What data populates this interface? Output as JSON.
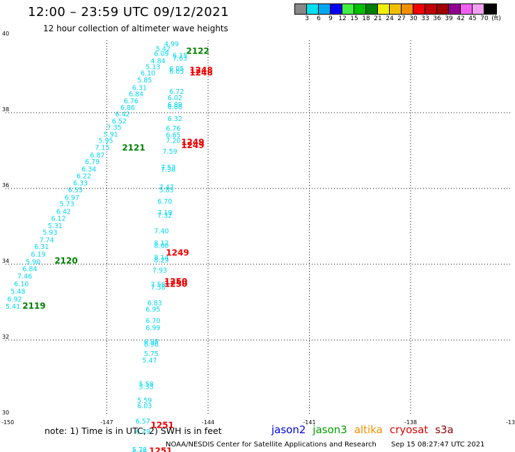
{
  "header": {
    "title": "12:00 – 23:59 UTC 09/12/2021",
    "subtitle": "12 hour collection of altimeter wave heights"
  },
  "colorbar": {
    "colors": [
      "#888888",
      "#00e0f0",
      "#00a8f0",
      "#0000f0",
      "#40f040",
      "#00c000",
      "#008000",
      "#f0f000",
      "#f0c000",
      "#f09000",
      "#f00000",
      "#c00000",
      "#a00000",
      "#900090",
      "#f060f0",
      "#f0a0f0",
      "#000000"
    ],
    "labels": [
      "3",
      "6",
      "9",
      "12",
      "15",
      "18",
      "21",
      "24",
      "27",
      "30",
      "33",
      "36",
      "39",
      "42",
      "45",
      "70",
      "(ft)"
    ]
  },
  "axes": {
    "y_labels": [
      "40",
      "38",
      "36",
      "34",
      "32",
      "30"
    ],
    "x_labels": [
      "-150",
      "-147",
      "-144",
      "-141",
      "-138",
      "-13"
    ]
  },
  "map_data": {
    "lon_range": [
      -150,
      -135
    ],
    "lat_range": [
      30,
      40
    ],
    "wave_color": "#00d8f0",
    "track_a": [
      {
        "lon": -145.3,
        "lat": 39.75,
        "v": "4.99"
      },
      {
        "lon": -145.55,
        "lat": 39.62,
        "v": "5.42"
      },
      {
        "lon": -145.6,
        "lat": 39.5,
        "v": "6.09"
      },
      {
        "lon": -145.7,
        "lat": 39.3,
        "v": "4.84"
      },
      {
        "lon": -145.85,
        "lat": 39.15,
        "v": "5.13"
      },
      {
        "lon": -146.0,
        "lat": 38.98,
        "v": "6.10"
      },
      {
        "lon": -146.1,
        "lat": 38.8,
        "v": "5.85"
      },
      {
        "lon": -146.25,
        "lat": 38.6,
        "v": "6.31"
      },
      {
        "lon": -146.35,
        "lat": 38.43,
        "v": "6.84"
      },
      {
        "lon": -146.5,
        "lat": 38.25,
        "v": "6.76"
      },
      {
        "lon": -146.6,
        "lat": 38.07,
        "v": "6.86"
      },
      {
        "lon": -146.75,
        "lat": 37.9,
        "v": "6.42"
      },
      {
        "lon": -146.85,
        "lat": 37.72,
        "v": "6.52"
      },
      {
        "lon": -147.0,
        "lat": 37.55,
        "v": "7.35"
      },
      {
        "lon": -147.1,
        "lat": 37.37,
        "v": "5.91"
      },
      {
        "lon": -147.25,
        "lat": 37.2,
        "v": "5.95"
      },
      {
        "lon": -147.35,
        "lat": 37.02,
        "v": "7.15"
      },
      {
        "lon": -147.5,
        "lat": 36.82,
        "v": "6.87"
      },
      {
        "lon": -147.65,
        "lat": 36.64,
        "v": "6.79"
      },
      {
        "lon": -147.75,
        "lat": 36.45,
        "v": "6.34"
      },
      {
        "lon": -147.9,
        "lat": 36.27,
        "v": "6.22"
      },
      {
        "lon": -148.0,
        "lat": 36.08,
        "v": "6.33"
      },
      {
        "lon": -148.15,
        "lat": 35.9,
        "v": "6.55"
      },
      {
        "lon": -148.25,
        "lat": 35.7,
        "v": "6.97"
      },
      {
        "lon": -148.4,
        "lat": 35.53,
        "v": "5.73"
      },
      {
        "lon": -148.5,
        "lat": 35.33,
        "v": "6.42"
      },
      {
        "lon": -148.65,
        "lat": 35.15,
        "v": "6.12"
      },
      {
        "lon": -148.75,
        "lat": 34.95,
        "v": "5.31"
      },
      {
        "lon": -148.9,
        "lat": 34.78,
        "v": "5.93"
      },
      {
        "lon": -149.0,
        "lat": 34.58,
        "v": "7.74"
      },
      {
        "lon": -149.15,
        "lat": 34.4,
        "v": "6.31"
      },
      {
        "lon": -149.25,
        "lat": 34.2,
        "v": "6.19"
      },
      {
        "lon": -149.4,
        "lat": 34.0,
        "v": "5.90"
      },
      {
        "lon": -149.5,
        "lat": 33.82,
        "v": "6.84"
      },
      {
        "lon": -149.65,
        "lat": 33.62,
        "v": "7.46"
      },
      {
        "lon": -149.75,
        "lat": 33.42,
        "v": "6.10"
      },
      {
        "lon": -149.85,
        "lat": 33.22,
        "v": "5.48"
      },
      {
        "lon": -149.95,
        "lat": 33.02,
        "v": "6.92"
      },
      {
        "lon": -150.0,
        "lat": 32.83,
        "v": "5.41"
      }
    ],
    "track_b": [
      {
        "lon": -145.05,
        "lat": 39.45,
        "v": "6.15"
      },
      {
        "lon": -145.05,
        "lat": 39.38,
        "v": "7.63"
      },
      {
        "lon": -145.15,
        "lat": 39.1,
        "v": "6.05"
      },
      {
        "lon": -145.15,
        "lat": 39.03,
        "v": "6.05"
      },
      {
        "lon": -145.15,
        "lat": 38.5,
        "v": "6.72"
      },
      {
        "lon": -145.2,
        "lat": 38.33,
        "v": "6.02"
      },
      {
        "lon": -145.2,
        "lat": 38.15,
        "v": "6.89"
      },
      {
        "lon": -145.2,
        "lat": 38.09,
        "v": "6.88"
      },
      {
        "lon": -145.2,
        "lat": 37.78,
        "v": "6.32"
      },
      {
        "lon": -145.25,
        "lat": 37.52,
        "v": "6.76"
      },
      {
        "lon": -145.25,
        "lat": 37.35,
        "v": "6.65"
      },
      {
        "lon": -145.25,
        "lat": 37.2,
        "v": "7.20"
      },
      {
        "lon": -145.35,
        "lat": 36.92,
        "v": "7.59"
      },
      {
        "lon": -145.4,
        "lat": 36.5,
        "v": "7.53"
      },
      {
        "lon": -145.4,
        "lat": 36.44,
        "v": "7.38"
      },
      {
        "lon": -145.45,
        "lat": 35.97,
        "v": "7.47"
      },
      {
        "lon": -145.45,
        "lat": 35.9,
        "v": "5.83"
      },
      {
        "lon": -145.5,
        "lat": 35.6,
        "v": "6.70"
      },
      {
        "lon": -145.5,
        "lat": 35.3,
        "v": "7.19"
      },
      {
        "lon": -145.5,
        "lat": 35.23,
        "v": "7.32"
      },
      {
        "lon": -145.6,
        "lat": 34.82,
        "v": "7.40"
      },
      {
        "lon": -145.6,
        "lat": 34.5,
        "v": "8.12"
      },
      {
        "lon": -145.6,
        "lat": 34.43,
        "v": "8.00"
      },
      {
        "lon": -145.6,
        "lat": 34.12,
        "v": "8.14"
      },
      {
        "lon": -145.6,
        "lat": 34.05,
        "v": "8.29"
      },
      {
        "lon": -145.65,
        "lat": 33.78,
        "v": "7.93"
      },
      {
        "lon": -145.7,
        "lat": 33.4,
        "v": "7.58"
      },
      {
        "lon": -145.7,
        "lat": 33.33,
        "v": "7.58"
      },
      {
        "lon": -145.8,
        "lat": 32.92,
        "v": "6.83"
      },
      {
        "lon": -145.85,
        "lat": 32.75,
        "v": "6.95"
      },
      {
        "lon": -145.85,
        "lat": 32.45,
        "v": "6.70"
      },
      {
        "lon": -145.85,
        "lat": 32.27,
        "v": "6.99"
      },
      {
        "lon": -145.9,
        "lat": 31.9,
        "v": "6.98"
      },
      {
        "lon": -145.9,
        "lat": 31.83,
        "v": "6.96"
      },
      {
        "lon": -145.9,
        "lat": 31.58,
        "v": "5.75"
      },
      {
        "lon": -145.95,
        "lat": 31.4,
        "v": "5.47"
      },
      {
        "lon": -146.05,
        "lat": 30.78,
        "v": "5.58"
      },
      {
        "lon": -146.05,
        "lat": 30.71,
        "v": "5.33"
      },
      {
        "lon": -146.1,
        "lat": 30.35,
        "v": "5.59"
      },
      {
        "lon": -146.1,
        "lat": 30.2,
        "v": "6.03"
      },
      {
        "lon": -146.15,
        "lat": 29.8,
        "v": "6.57"
      },
      {
        "lon": -146.15,
        "lat": 29.52,
        "v": "6.19"
      },
      {
        "lon": -146.25,
        "lat": 29.05,
        "v": "5.78"
      },
      {
        "lon": -146.25,
        "lat": 28.98,
        "v": "6.45"
      }
    ],
    "time_labels": [
      {
        "lon": -144.65,
        "lat": 39.55,
        "v": "2122",
        "color": "#008000"
      },
      {
        "lon": -144.55,
        "lat": 39.05,
        "v": "1248",
        "color": "#f00000"
      },
      {
        "lon": -144.55,
        "lat": 38.98,
        "v": "1248",
        "color": "#f00000"
      },
      {
        "lon": -146.55,
        "lat": 37.0,
        "v": "2121",
        "color": "#008000"
      },
      {
        "lon": -144.8,
        "lat": 37.15,
        "v": "1249",
        "color": "#f00000"
      },
      {
        "lon": -144.8,
        "lat": 37.06,
        "v": "1249",
        "color": "#f00000"
      },
      {
        "lon": -145.25,
        "lat": 34.23,
        "v": "1249",
        "color": "#f00000"
      },
      {
        "lon": -145.3,
        "lat": 33.47,
        "v": "1250",
        "color": "#f00000"
      },
      {
        "lon": -145.3,
        "lat": 33.4,
        "v": "1250",
        "color": "#f00000"
      },
      {
        "lon": -148.55,
        "lat": 34.02,
        "v": "2120",
        "color": "#008000"
      },
      {
        "lon": -149.5,
        "lat": 32.83,
        "v": "2119",
        "color": "#008000"
      },
      {
        "lon": -145.7,
        "lat": 29.68,
        "v": "1251",
        "color": "#f00000"
      },
      {
        "lon": -145.75,
        "lat": 29.0,
        "v": "1251",
        "color": "#f00000"
      }
    ]
  },
  "note": "note:  1) Time is in UTC; 2) SWH is in feet",
  "legend": [
    {
      "label": "jason2",
      "color": "#0000e0"
    },
    {
      "label": "jason3",
      "color": "#00a000"
    },
    {
      "label": "altika",
      "color": "#f09000"
    },
    {
      "label": "cryosat",
      "color": "#e00000"
    },
    {
      "label": "s3a",
      "color": "#900000"
    }
  ],
  "footer": {
    "center": "NOAA/NESDIS Center for Satellite Applications and Research",
    "timestamp": "Sep 15 08:27:47 UTC 2021"
  }
}
